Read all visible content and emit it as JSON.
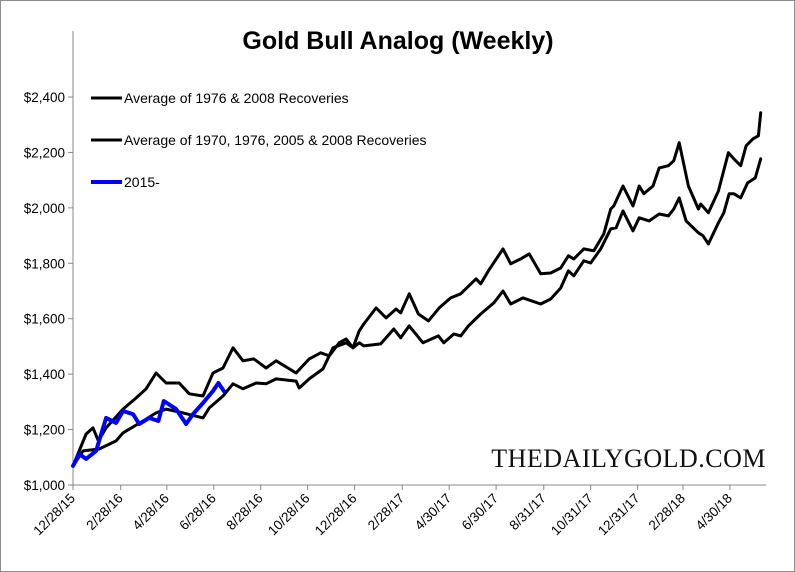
{
  "chart_data": {
    "type": "line",
    "title": "Gold Bull Analog (Weekly)",
    "xlabel": "",
    "ylabel": "",
    "ylim": [
      1000,
      2400
    ],
    "y_ticks": [
      "$1,000",
      "$1,200",
      "$1,400",
      "$1,600",
      "$1,800",
      "$2,000",
      "$2,200",
      "$2,400"
    ],
    "y_tick_values": [
      1000,
      1200,
      1400,
      1600,
      1800,
      2000,
      2200,
      2400
    ],
    "x_ticks": [
      "12/28/15",
      "2/28/16",
      "4/28/16",
      "6/28/16",
      "8/28/16",
      "10/28/16",
      "12/28/16",
      "2/28/17",
      "4/30/17",
      "6/30/17",
      "8/31/17",
      "10/31/17",
      "12/31/17",
      "2/28/18",
      "4/30/18"
    ],
    "legend_position": "top-left",
    "grid": false,
    "watermark": "THEDAILYGOLD.COM",
    "series": [
      {
        "name": "Average of 1976 & 2008 Recoveries",
        "color": "#000000",
        "points": [
          [
            "2015-12-28",
            1069
          ],
          [
            "2016-01-14",
            1184
          ],
          [
            "2016-01-23",
            1206
          ],
          [
            "2016-01-30",
            1159
          ],
          [
            "2016-02-09",
            1206
          ],
          [
            "2016-03-02",
            1274
          ],
          [
            "2016-03-19",
            1314
          ],
          [
            "2016-04-01",
            1347
          ],
          [
            "2016-04-14",
            1404
          ],
          [
            "2016-04-27",
            1368
          ],
          [
            "2016-05-14",
            1368
          ],
          [
            "2016-05-27",
            1329
          ],
          [
            "2016-06-14",
            1321
          ],
          [
            "2016-06-27",
            1404
          ],
          [
            "2016-07-10",
            1422
          ],
          [
            "2016-07-23",
            1495
          ],
          [
            "2016-08-05",
            1448
          ],
          [
            "2016-08-19",
            1455
          ],
          [
            "2016-09-04",
            1422
          ],
          [
            "2016-09-17",
            1448
          ],
          [
            "2016-10-13",
            1404
          ],
          [
            "2016-10-30",
            1455
          ],
          [
            "2016-11-14",
            1477
          ],
          [
            "2016-11-25",
            1466
          ],
          [
            "2016-12-08",
            1513
          ],
          [
            "2016-12-17",
            1527
          ],
          [
            "2016-12-26",
            1495
          ],
          [
            "2017-01-03",
            1556
          ],
          [
            "2017-01-09",
            1581
          ],
          [
            "2017-01-25",
            1639
          ],
          [
            "2017-02-07",
            1603
          ],
          [
            "2017-02-20",
            1635
          ],
          [
            "2017-02-26",
            1621
          ],
          [
            "2017-03-09",
            1690
          ],
          [
            "2017-03-21",
            1617
          ],
          [
            "2017-04-03",
            1592
          ],
          [
            "2017-04-17",
            1639
          ],
          [
            "2017-05-02",
            1675
          ],
          [
            "2017-05-15",
            1690
          ],
          [
            "2017-06-04",
            1744
          ],
          [
            "2017-06-10",
            1726
          ],
          [
            "2017-06-20",
            1773
          ],
          [
            "2017-07-09",
            1852
          ],
          [
            "2017-07-19",
            1798
          ],
          [
            "2017-08-01",
            1816
          ],
          [
            "2017-08-12",
            1834
          ],
          [
            "2017-08-27",
            1762
          ],
          [
            "2017-09-09",
            1765
          ],
          [
            "2017-09-22",
            1783
          ],
          [
            "2017-10-02",
            1827
          ],
          [
            "2017-10-09",
            1816
          ],
          [
            "2017-10-22",
            1852
          ],
          [
            "2017-11-04",
            1845
          ],
          [
            "2017-11-17",
            1906
          ],
          [
            "2017-11-26",
            1996
          ],
          [
            "2017-11-30",
            2007
          ],
          [
            "2017-12-12",
            2079
          ],
          [
            "2017-12-25",
            2007
          ],
          [
            "2018-01-02",
            2079
          ],
          [
            "2018-01-08",
            2051
          ],
          [
            "2018-01-20",
            2079
          ],
          [
            "2018-01-28",
            2144
          ],
          [
            "2018-02-09",
            2152
          ],
          [
            "2018-02-16",
            2170
          ],
          [
            "2018-02-23",
            2235
          ],
          [
            "2018-03-07",
            2079
          ],
          [
            "2018-03-20",
            1996
          ],
          [
            "2018-03-23",
            2014
          ],
          [
            "2018-04-02",
            1982
          ],
          [
            "2018-04-15",
            2061
          ],
          [
            "2018-04-28",
            2199
          ],
          [
            "2018-05-05",
            2177
          ],
          [
            "2018-05-14",
            2152
          ],
          [
            "2018-05-21",
            2224
          ],
          [
            "2018-05-30",
            2249
          ],
          [
            "2018-06-06",
            2260
          ],
          [
            "2018-06-09",
            2343
          ]
        ]
      },
      {
        "name": "Average of 1970, 1976, 2005 & 2008 Recoveries",
        "color": "#000000",
        "points": [
          [
            "2015-12-28",
            1069
          ],
          [
            "2016-01-10",
            1123
          ],
          [
            "2016-01-31",
            1130
          ],
          [
            "2016-02-22",
            1159
          ],
          [
            "2016-03-02",
            1188
          ],
          [
            "2016-03-28",
            1231
          ],
          [
            "2016-04-14",
            1260
          ],
          [
            "2016-04-27",
            1274
          ],
          [
            "2016-05-19",
            1260
          ],
          [
            "2016-06-14",
            1242
          ],
          [
            "2016-06-22",
            1278
          ],
          [
            "2016-07-10",
            1321
          ],
          [
            "2016-07-23",
            1365
          ],
          [
            "2016-08-05",
            1347
          ],
          [
            "2016-08-22",
            1368
          ],
          [
            "2016-09-04",
            1365
          ],
          [
            "2016-09-17",
            1383
          ],
          [
            "2016-10-13",
            1375
          ],
          [
            "2016-10-17",
            1350
          ],
          [
            "2016-10-30",
            1383
          ],
          [
            "2016-11-17",
            1419
          ],
          [
            "2016-11-30",
            1495
          ],
          [
            "2016-12-17",
            1513
          ],
          [
            "2016-12-26",
            1495
          ],
          [
            "2017-01-03",
            1513
          ],
          [
            "2017-01-09",
            1502
          ],
          [
            "2017-01-31",
            1509
          ],
          [
            "2017-02-17",
            1563
          ],
          [
            "2017-02-26",
            1531
          ],
          [
            "2017-03-09",
            1574
          ],
          [
            "2017-03-27",
            1513
          ],
          [
            "2017-04-16",
            1538
          ],
          [
            "2017-04-23",
            1513
          ],
          [
            "2017-05-06",
            1545
          ],
          [
            "2017-05-15",
            1538
          ],
          [
            "2017-05-25",
            1574
          ],
          [
            "2017-06-10",
            1617
          ],
          [
            "2017-06-27",
            1657
          ],
          [
            "2017-07-09",
            1700
          ],
          [
            "2017-07-19",
            1653
          ],
          [
            "2017-08-04",
            1675
          ],
          [
            "2017-08-27",
            1653
          ],
          [
            "2017-09-09",
            1671
          ],
          [
            "2017-09-22",
            1711
          ],
          [
            "2017-10-02",
            1773
          ],
          [
            "2017-10-09",
            1755
          ],
          [
            "2017-10-22",
            1809
          ],
          [
            "2017-10-31",
            1801
          ],
          [
            "2017-11-13",
            1852
          ],
          [
            "2017-11-26",
            1924
          ],
          [
            "2017-12-03",
            1928
          ],
          [
            "2017-12-12",
            1989
          ],
          [
            "2017-12-25",
            1917
          ],
          [
            "2018-01-02",
            1964
          ],
          [
            "2018-01-15",
            1953
          ],
          [
            "2018-01-28",
            1978
          ],
          [
            "2018-02-09",
            1971
          ],
          [
            "2018-02-16",
            1996
          ],
          [
            "2018-02-23",
            2036
          ],
          [
            "2018-03-04",
            1953
          ],
          [
            "2018-03-20",
            1910
          ],
          [
            "2018-03-26",
            1899
          ],
          [
            "2018-04-02",
            1870
          ],
          [
            "2018-04-15",
            1946
          ],
          [
            "2018-04-22",
            1982
          ],
          [
            "2018-04-29",
            2051
          ],
          [
            "2018-05-05",
            2051
          ],
          [
            "2018-05-14",
            2036
          ],
          [
            "2018-05-23",
            2090
          ],
          [
            "2018-06-02",
            2108
          ],
          [
            "2018-06-09",
            2177
          ]
        ]
      },
      {
        "name": "2015-",
        "color": "#0000ff",
        "points": [
          [
            "2015-12-28",
            1069
          ],
          [
            "2016-01-05",
            1112
          ],
          [
            "2016-01-14",
            1094
          ],
          [
            "2016-01-27",
            1123
          ],
          [
            "2016-02-09",
            1242
          ],
          [
            "2016-02-22",
            1224
          ],
          [
            "2016-03-02",
            1267
          ],
          [
            "2016-03-15",
            1256
          ],
          [
            "2016-03-23",
            1220
          ],
          [
            "2016-04-05",
            1242
          ],
          [
            "2016-04-17",
            1231
          ],
          [
            "2016-04-24",
            1303
          ],
          [
            "2016-05-10",
            1274
          ],
          [
            "2016-05-23",
            1220
          ],
          [
            "2016-06-01",
            1256
          ],
          [
            "2016-06-14",
            1296
          ],
          [
            "2016-06-27",
            1339
          ],
          [
            "2016-07-04",
            1368
          ],
          [
            "2016-07-11",
            1339
          ]
        ]
      }
    ]
  }
}
